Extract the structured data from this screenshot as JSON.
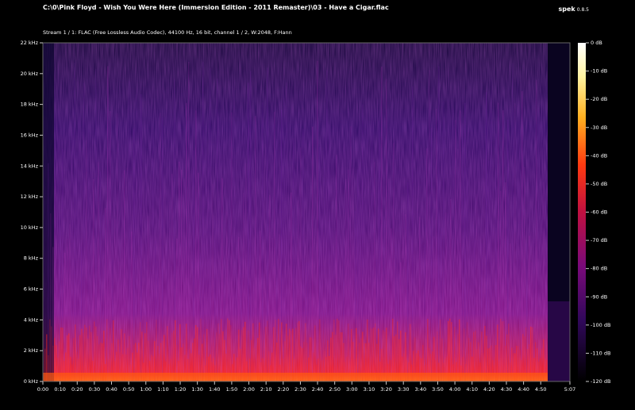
{
  "window": {
    "title": "C:\\0\\Pink Floyd - Wish You Were Here (Immersion Edition - 2011 Remaster)\\03 - Have a Cigar.flac",
    "stream_info": "Stream 1 / 1: FLAC (Free Lossless Audio Codec), 44100 Hz, 16 bit, channel 1 / 2, W:2048, F:Hann",
    "app_name": "spek",
    "app_version": "0.8.5"
  },
  "spectrogram": {
    "duration_label": "5:07",
    "freq_ticks": [
      "0 kHz",
      "2 kHz",
      "4 kHz",
      "6 kHz",
      "8 kHz",
      "10 kHz",
      "12 kHz",
      "14 kHz",
      "16 kHz",
      "18 kHz",
      "20 kHz",
      "22 kHz"
    ],
    "time_ticks": [
      "0:00",
      "0:10",
      "0:20",
      "0:30",
      "0:40",
      "0:50",
      "1:00",
      "1:10",
      "1:20",
      "1:30",
      "1:40",
      "1:50",
      "2:00",
      "2:10",
      "2:20",
      "2:30",
      "2:40",
      "2:50",
      "3:00",
      "3:10",
      "3:20",
      "3:30",
      "3:40",
      "3:50",
      "4:00",
      "4:10",
      "4:20",
      "4:30",
      "4:40",
      "4:50",
      "5:07"
    ],
    "db_ticks": [
      "0 dB",
      "-10 dB",
      "-20 dB",
      "-30 dB",
      "-40 dB",
      "-50 dB",
      "-60 dB",
      "-70 dB",
      "-80 dB",
      "-90 dB",
      "-100 dB",
      "-110 dB",
      "-120 dB"
    ],
    "colors": {
      "background": "#000000",
      "low": "#0a0430",
      "mid": "#5a0f7a",
      "high": "#e0202a",
      "peak": "#ff8a1a",
      "top": "#ffffff"
    }
  }
}
